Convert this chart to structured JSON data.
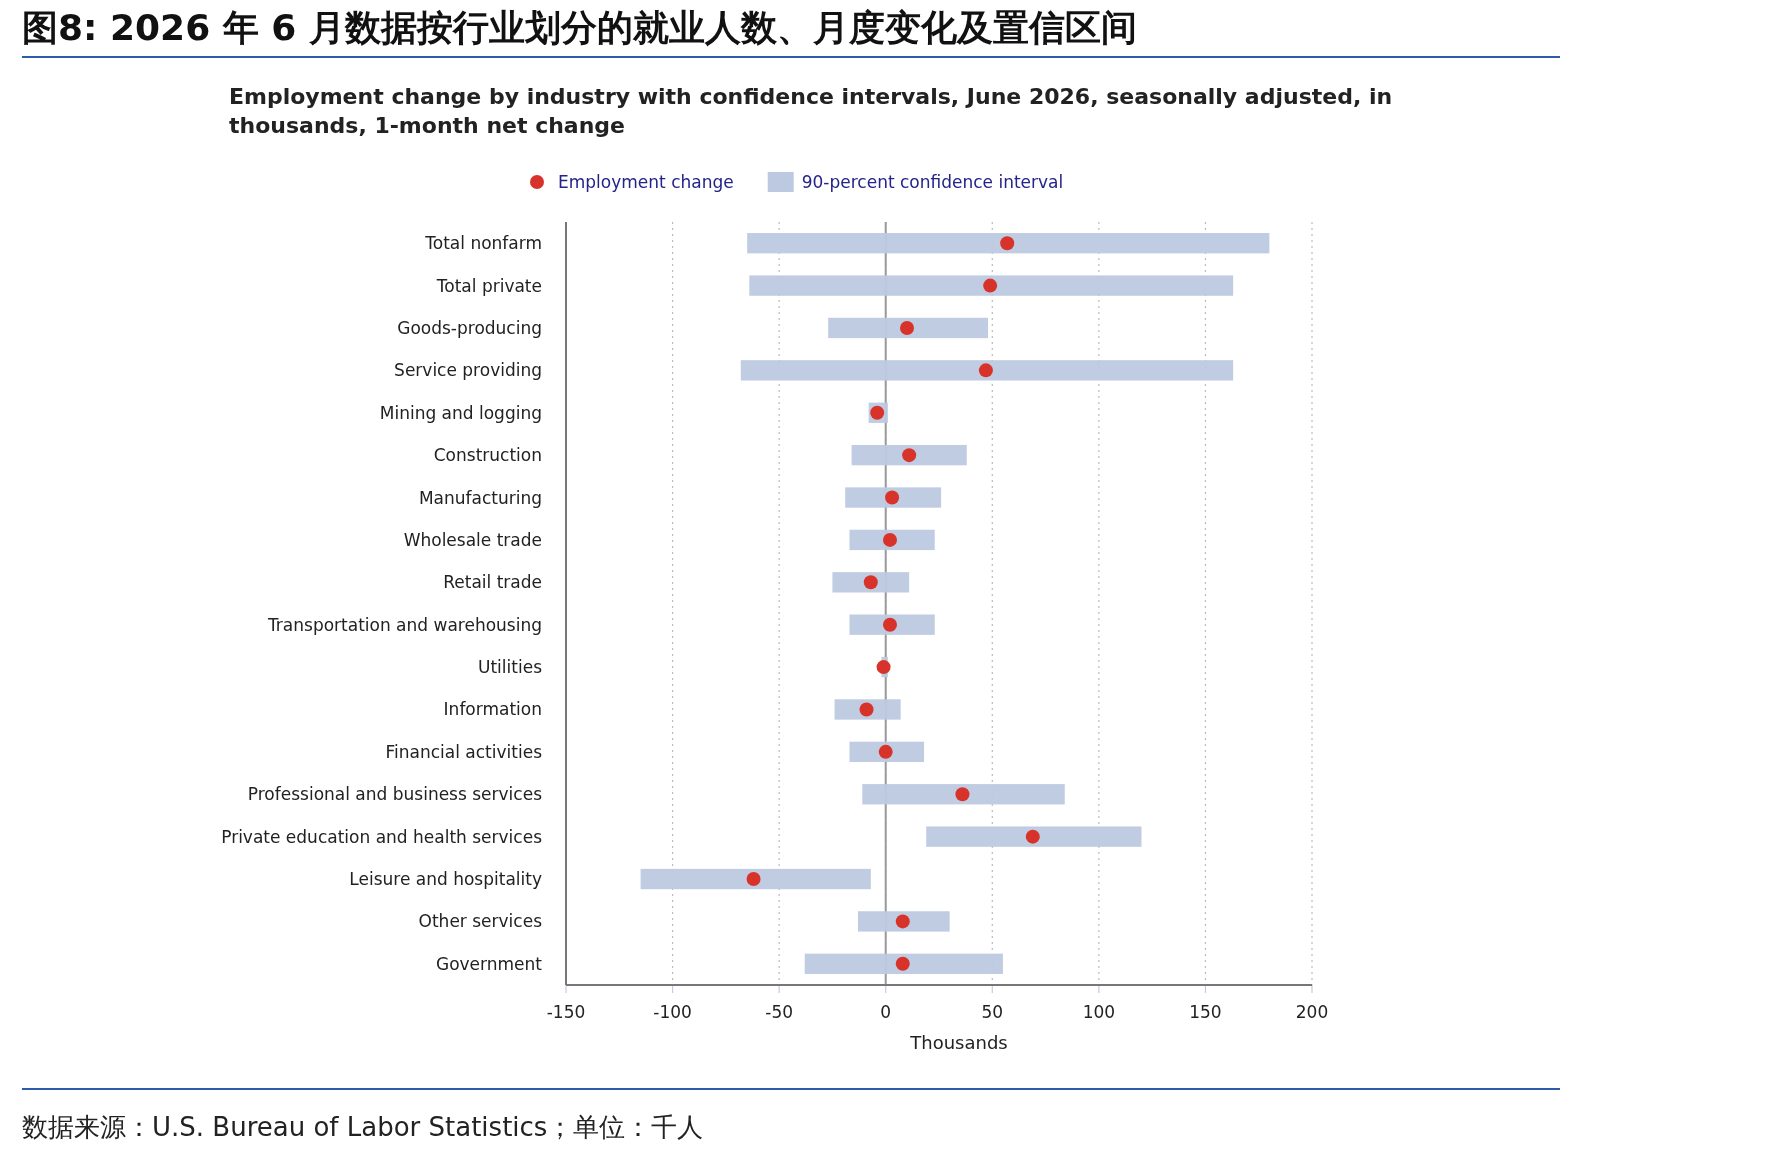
{
  "chart_data": {
    "type": "bar",
    "orientation": "horizontal",
    "title": "图8: 2026 年 6 月数据按行业划分的就业人数、月度变化及置信区间",
    "subtitle": "Employment change by industry with confidence intervals, June 2026, seasonally adjusted, in thousands, 1-month net change",
    "xlabel": "Thousands",
    "categories": [
      "Total nonfarm",
      "Total private",
      "Goods-producing",
      "Service providing",
      "Mining and logging",
      "Construction",
      "Manufacturing",
      "Wholesale trade",
      "Retail trade",
      "Transportation and warehousing",
      "Utilities",
      "Information",
      "Financial activities",
      "Professional and business services",
      "Private education and health services",
      "Leisure and hospitality",
      "Other services",
      "Government"
    ],
    "series": [
      {
        "name": "90-percent confidence interval",
        "type": "bar",
        "color": "#bdc9e0",
        "base": [
          -65,
          -64,
          -27,
          -68,
          -8,
          -16,
          -19,
          -17,
          -25,
          -17,
          -2,
          -24,
          -17,
          -11,
          19,
          -115,
          -13,
          -38
        ],
        "values": [
          245,
          227,
          75,
          231,
          9,
          54,
          45,
          40,
          36,
          40,
          3,
          31,
          35,
          95,
          101,
          108,
          43,
          93
        ]
      },
      {
        "name": "Employment change",
        "type": "scatter",
        "marker": "circle",
        "color": "#d7332a",
        "values": [
          57,
          49,
          10,
          47,
          -4,
          11,
          3,
          2,
          -7,
          2,
          -1,
          -9,
          0,
          36,
          69,
          -62,
          8,
          8
        ]
      }
    ],
    "xlim": [
      -150,
      200
    ],
    "xticks": [
      -150,
      -100,
      -50,
      0,
      50,
      100,
      150,
      200
    ],
    "grid": "x",
    "legend": "top",
    "ref_lines": [
      {
        "axis": "x",
        "value": 0,
        "color": "#999999"
      }
    ],
    "annotations": [
      "数据来源：U.S. Bureau of Labor Statistics；单位：千人"
    ]
  }
}
